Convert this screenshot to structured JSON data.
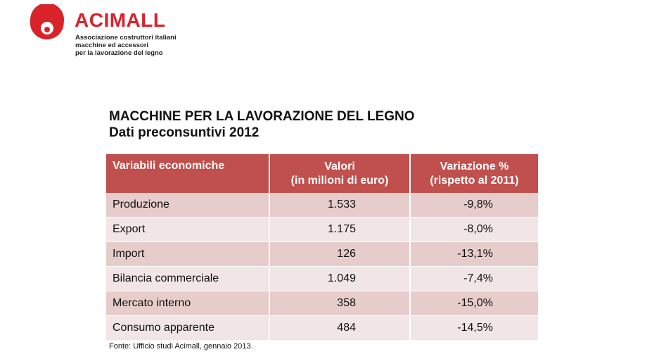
{
  "brand": {
    "name": "ACIMALL",
    "subtitle_lines": [
      "Associazione costruttori italiani",
      "macchine ed accessori",
      "per la lavorazione del legno"
    ],
    "color": "#d8232a"
  },
  "title": {
    "line1": "MACCHINE PER LA LAVORAZIONE DEL LEGNO",
    "line2": "Dati preconsuntivi 2012"
  },
  "table": {
    "header_color": "#c0504d",
    "headers": {
      "col1": "Variabili economiche",
      "col2_line1": "Valori",
      "col2_line2": "(in milioni di euro)",
      "col3_line1": "Variazione %",
      "col3_line2": "(rispetto al 2011)"
    },
    "rows": [
      {
        "label": "Produzione",
        "value": "1.533",
        "change": "-9,8%"
      },
      {
        "label": "Export",
        "value": "1.175",
        "change": "-8,0%"
      },
      {
        "label": "Import",
        "value": "126",
        "change": "-13,1%"
      },
      {
        "label": "Bilancia commerciale",
        "value": "1.049",
        "change": "-7,4%"
      },
      {
        "label": "Mercato interno",
        "value": "358",
        "change": "-15,0%"
      },
      {
        "label": "Consumo apparente",
        "value": "484",
        "change": "-14,5%"
      }
    ]
  },
  "source": "Fonte: Ufficio studi Acimall, gennaio 2013."
}
